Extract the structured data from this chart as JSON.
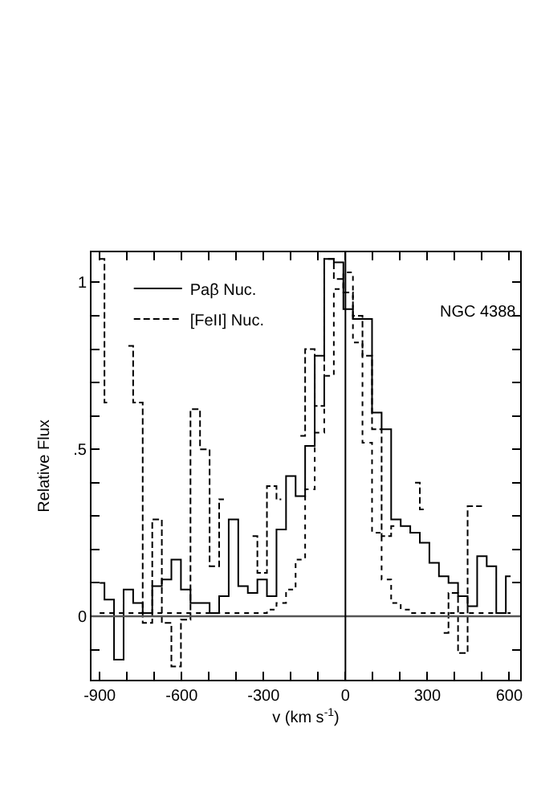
{
  "chart_data": {
    "type": "step",
    "xlabel": "v (km s$^{-1}$)",
    "ylabel": "Relative Flux",
    "annotations": [
      "NGC 4388"
    ],
    "x": [
      -900,
      -865,
      -830,
      -795,
      -760,
      -725,
      -690,
      -655,
      -620,
      -585,
      -550,
      -515,
      -480,
      -445,
      -410,
      -375,
      -340,
      -305,
      -270,
      -235,
      -200,
      -165,
      -130,
      -95,
      -60,
      -25,
      10,
      45,
      80,
      115,
      150,
      185,
      220,
      255,
      290,
      325,
      360,
      395,
      430,
      465,
      500,
      535,
      570,
      605
    ],
    "series": [
      {
        "name": "Paβ Nuc.",
        "color": "#000000",
        "line_style": "solid",
        "values": [
          0.1,
          0.05,
          -0.13,
          0.08,
          0.04,
          0.01,
          0.09,
          0.11,
          0.17,
          0.08,
          0.04,
          0.04,
          0.01,
          0.06,
          0.29,
          0.09,
          0.07,
          0.11,
          0.06,
          0.26,
          0.42,
          0.36,
          0.51,
          0.78,
          1.07,
          1.06,
          0.92,
          0.89,
          0.89,
          0.61,
          0.56,
          0.29,
          0.27,
          0.25,
          0.22,
          0.16,
          0.12,
          0.1,
          0.06,
          0.03,
          0.18,
          0.15,
          0.01,
          0.12
        ]
      },
      {
        "name": "[FeII] Nuc.",
        "color": "#000000",
        "line_style": "dashed",
        "values": [
          1.07,
          0.64,
          null,
          0.81,
          0.64,
          -0.02,
          0.29,
          -0.02,
          -0.15,
          -0.01,
          0.62,
          0.5,
          0.15,
          0.35,
          null,
          null,
          0.24,
          0.13,
          0.39,
          0.35,
          null,
          0.54,
          0.8,
          0.63,
          1.07,
          1.01,
          0.97,
          0.9,
          0.78,
          0.56,
          0.24,
          0.27,
          null,
          0.4,
          0.32,
          null,
          -0.05,
          0.07,
          -0.11,
          0.33,
          0.33,
          null,
          null,
          null
        ]
      },
      {
        "color": "#000000",
        "line_style": "dotted",
        "values": [
          0.01,
          0.01,
          0.01,
          0.01,
          0.01,
          0.01,
          0.01,
          0.01,
          0.01,
          0.01,
          0.01,
          0.01,
          0.01,
          0.01,
          0.01,
          0.01,
          0.01,
          0.01,
          0.02,
          0.04,
          0.08,
          0.17,
          0.38,
          0.55,
          0.72,
          0.98,
          1.03,
          0.82,
          0.52,
          0.25,
          0.11,
          0.04,
          0.02,
          0.01,
          0.01,
          0.01,
          0.01,
          0.01,
          0.01,
          0.01,
          0.01,
          0.01,
          0.01,
          0.01
        ]
      }
    ],
    "xlim": [
      -930,
      640
    ],
    "xticks": [
      -900,
      {
        "value": -800,
        "label": null
      },
      {
        "value": -700,
        "label": null
      },
      -600,
      {
        "value": -500,
        "label": null
      },
      {
        "value": -400,
        "label": null
      },
      -300,
      {
        "value": -200,
        "label": null
      },
      {
        "value": -100,
        "label": null
      },
      0,
      {
        "value": 100,
        "label": null
      },
      {
        "value": 200,
        "label": null
      },
      300,
      {
        "value": 400,
        "label": null
      },
      {
        "value": 500,
        "label": null
      },
      600
    ],
    "ylim": [
      -0.19,
      1.09
    ],
    "yticks": [
      {
        "value": -0.1,
        "label": null
      },
      0,
      {
        "value": 0.1,
        "label": null
      },
      {
        "value": 0.2,
        "label": null
      },
      {
        "value": 0.3,
        "label": null
      },
      {
        "value": 0.4,
        "label": null
      },
      {
        "value": 0.5,
        "label": ".5"
      },
      {
        "value": 0.6,
        "label": null
      },
      {
        "value": 0.7,
        "label": null
      },
      {
        "value": 0.8,
        "label": null
      },
      {
        "value": 0.9,
        "label": null
      },
      1
    ],
    "ref_lines": [
      {
        "axis": "y",
        "value": 0,
        "color": "#555555"
      },
      {
        "axis": "x",
        "value": 0,
        "color": "#000000"
      }
    ],
    "legend": "top left",
    "grid": false
  }
}
